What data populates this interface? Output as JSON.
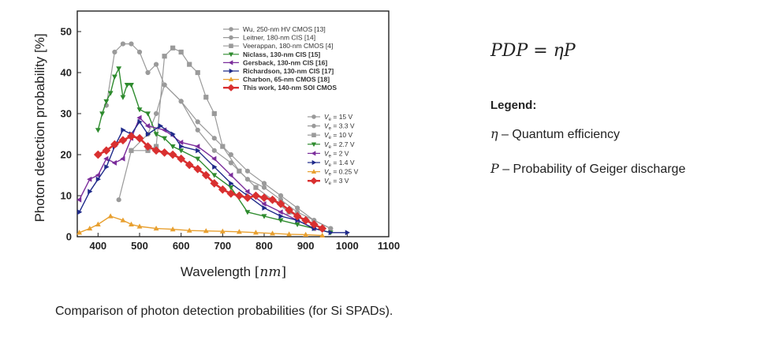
{
  "chart_data": {
    "type": "line",
    "xlabel_main": "Wavelength",
    "xlabel_unit": "nm",
    "ylabel": "Photon detection probability [%]",
    "xlim": [
      350,
      1100
    ],
    "ylim": [
      0,
      55
    ],
    "xticks": [
      400,
      500,
      600,
      700,
      800,
      900,
      1000,
      1100
    ],
    "yticks": [
      0,
      10,
      20,
      30,
      40,
      50
    ],
    "legend_position": "top-right",
    "series": [
      {
        "name": "Wu, 250-nm HV CMOS [13]",
        "voltage": "15 V",
        "color": "#9a9a9a",
        "marker": "hexagon",
        "width": 1.2,
        "bold": false,
        "points": [
          [
            450,
            9
          ],
          [
            480,
            21
          ],
          [
            520,
            25
          ],
          [
            540,
            30
          ],
          [
            560,
            37
          ],
          [
            600,
            33
          ],
          [
            640,
            26
          ],
          [
            680,
            21
          ],
          [
            720,
            18
          ],
          [
            760,
            14
          ],
          [
            800,
            12
          ],
          [
            840,
            9
          ],
          [
            880,
            6
          ],
          [
            920,
            4
          ],
          [
            960,
            2
          ]
        ]
      },
      {
        "name": "Leitner, 180-nm CIS [14]",
        "voltage": "3.3 V",
        "color": "#9a9a9a",
        "marker": "circle",
        "width": 1.2,
        "bold": false,
        "points": [
          [
            420,
            32
          ],
          [
            440,
            45
          ],
          [
            460,
            47
          ],
          [
            480,
            47
          ],
          [
            500,
            45
          ],
          [
            520,
            40
          ],
          [
            540,
            42
          ],
          [
            560,
            37
          ],
          [
            600,
            33
          ],
          [
            640,
            28
          ],
          [
            680,
            24
          ],
          [
            720,
            20
          ],
          [
            760,
            16
          ],
          [
            800,
            13
          ],
          [
            840,
            10
          ],
          [
            880,
            7
          ],
          [
            920,
            4
          ],
          [
            960,
            2
          ]
        ]
      },
      {
        "name": "Veerappan, 180-nm CMOS [4]",
        "voltage": "10 V",
        "color": "#9a9a9a",
        "marker": "square",
        "width": 1.2,
        "bold": false,
        "points": [
          [
            480,
            21
          ],
          [
            520,
            21
          ],
          [
            540,
            22
          ],
          [
            560,
            44
          ],
          [
            580,
            46
          ],
          [
            600,
            45
          ],
          [
            620,
            42
          ],
          [
            640,
            40
          ],
          [
            660,
            34
          ],
          [
            680,
            30
          ],
          [
            700,
            22
          ],
          [
            740,
            16
          ],
          [
            780,
            12
          ],
          [
            820,
            9
          ],
          [
            860,
            6
          ],
          [
            900,
            4
          ],
          [
            940,
            2
          ]
        ]
      },
      {
        "name": "Niclass, 130-nm CIS [15]",
        "voltage": "2.7 V",
        "color": "#2e8b2e",
        "marker": "triangle-down",
        "width": 1.4,
        "bold": true,
        "points": [
          [
            400,
            26
          ],
          [
            410,
            30
          ],
          [
            420,
            33
          ],
          [
            430,
            35
          ],
          [
            440,
            39
          ],
          [
            450,
            41
          ],
          [
            460,
            34
          ],
          [
            470,
            37
          ],
          [
            480,
            37
          ],
          [
            500,
            31
          ],
          [
            520,
            30
          ],
          [
            540,
            25
          ],
          [
            560,
            24
          ],
          [
            580,
            22
          ],
          [
            600,
            21
          ],
          [
            640,
            19
          ],
          [
            680,
            15
          ],
          [
            720,
            12
          ],
          [
            760,
            6
          ],
          [
            800,
            5
          ],
          [
            840,
            4
          ],
          [
            880,
            3
          ],
          [
            920,
            2
          ],
          [
            960,
            1
          ]
        ]
      },
      {
        "name": "Gersback, 130-nm CIS [16]",
        "voltage": "2 V",
        "color": "#7b2d9b",
        "marker": "triangle-left",
        "width": 1.4,
        "bold": true,
        "points": [
          [
            355,
            9
          ],
          [
            380,
            14
          ],
          [
            400,
            15
          ],
          [
            420,
            19
          ],
          [
            440,
            18
          ],
          [
            460,
            19
          ],
          [
            480,
            24
          ],
          [
            500,
            29
          ],
          [
            520,
            27
          ],
          [
            560,
            26
          ],
          [
            600,
            23
          ],
          [
            640,
            22
          ],
          [
            680,
            19
          ],
          [
            720,
            15
          ],
          [
            760,
            11
          ],
          [
            800,
            8
          ],
          [
            840,
            6
          ],
          [
            880,
            4
          ],
          [
            920,
            2
          ]
        ]
      },
      {
        "name": "Richardson, 130-nm CIS [17]",
        "voltage": "1.4 V",
        "color": "#1f2a8a",
        "marker": "triangle-right",
        "width": 1.4,
        "bold": true,
        "points": [
          [
            355,
            6
          ],
          [
            380,
            11
          ],
          [
            400,
            14
          ],
          [
            420,
            17
          ],
          [
            440,
            22
          ],
          [
            460,
            26
          ],
          [
            480,
            25
          ],
          [
            500,
            28
          ],
          [
            520,
            25
          ],
          [
            550,
            27
          ],
          [
            580,
            25
          ],
          [
            600,
            22
          ],
          [
            640,
            21
          ],
          [
            680,
            17
          ],
          [
            720,
            13
          ],
          [
            760,
            10
          ],
          [
            800,
            7
          ],
          [
            840,
            5
          ],
          [
            880,
            4
          ],
          [
            920,
            2
          ],
          [
            960,
            1
          ],
          [
            1000,
            1
          ]
        ]
      },
      {
        "name": "Charbon, 65-nm CMOS [18]",
        "voltage": "0.25 V",
        "color": "#e8a030",
        "marker": "triangle-up",
        "width": 1.4,
        "bold": true,
        "points": [
          [
            355,
            1
          ],
          [
            380,
            2
          ],
          [
            400,
            3
          ],
          [
            430,
            5
          ],
          [
            460,
            4
          ],
          [
            480,
            3
          ],
          [
            500,
            2.5
          ],
          [
            540,
            2
          ],
          [
            580,
            1.8
          ],
          [
            620,
            1.5
          ],
          [
            660,
            1.4
          ],
          [
            700,
            1.3
          ],
          [
            740,
            1.2
          ],
          [
            780,
            1
          ],
          [
            820,
            0.8
          ],
          [
            860,
            0.6
          ],
          [
            900,
            0.5
          ],
          [
            940,
            0.3
          ]
        ]
      },
      {
        "name": "This work, 140-nm SOI CMOS",
        "voltage": "3 V",
        "color": "#d93030",
        "marker": "diamond",
        "width": 2.6,
        "bold": true,
        "points": [
          [
            400,
            20
          ],
          [
            420,
            21
          ],
          [
            440,
            22.5
          ],
          [
            460,
            23.5
          ],
          [
            480,
            24.5
          ],
          [
            500,
            24
          ],
          [
            520,
            22
          ],
          [
            540,
            21
          ],
          [
            560,
            20.5
          ],
          [
            580,
            20
          ],
          [
            600,
            19
          ],
          [
            620,
            17.5
          ],
          [
            640,
            16.5
          ],
          [
            660,
            15
          ],
          [
            680,
            13
          ],
          [
            700,
            11.5
          ],
          [
            720,
            10.5
          ],
          [
            740,
            10
          ],
          [
            760,
            9.5
          ],
          [
            780,
            10
          ],
          [
            800,
            9.5
          ],
          [
            820,
            9
          ],
          [
            840,
            8
          ],
          [
            860,
            6.5
          ],
          [
            880,
            5
          ],
          [
            900,
            4
          ],
          [
            920,
            3
          ],
          [
            940,
            2
          ]
        ]
      }
    ]
  },
  "formula": "PDP = ηP",
  "side_legend": {
    "title": "Legend:",
    "items": [
      {
        "symbol": "η",
        "text": " – Quantum efficiency"
      },
      {
        "symbol": "P",
        "text": " – Probability of Geiger discharge"
      }
    ]
  },
  "caption": "Comparison of photon detection probabilities (for Si SPADs)."
}
